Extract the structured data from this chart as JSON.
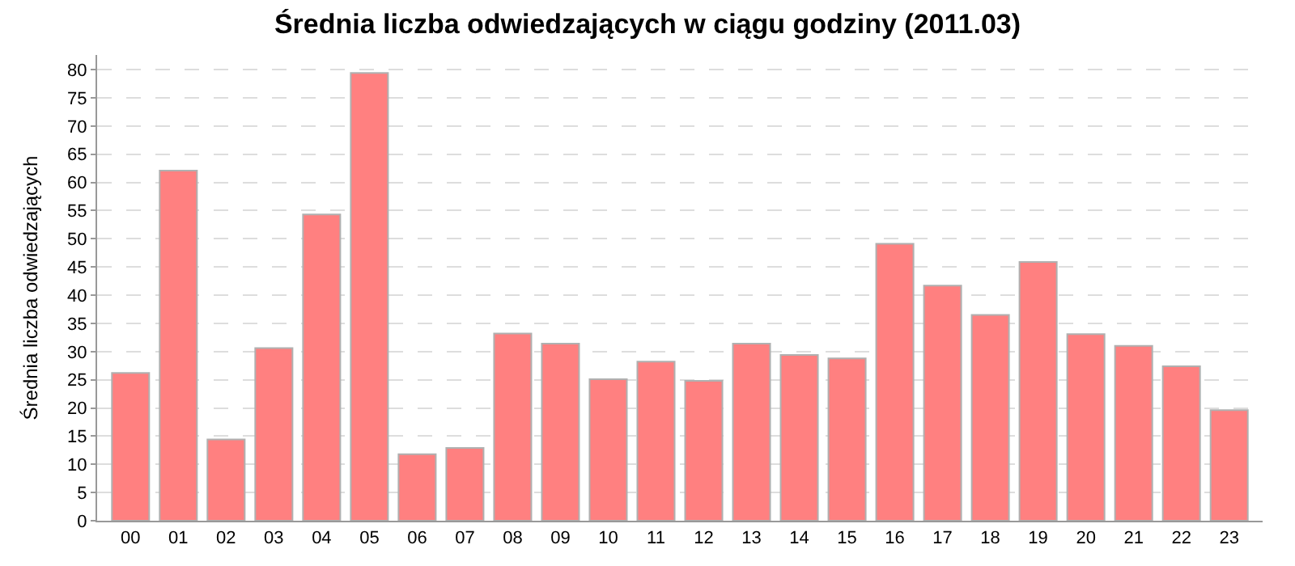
{
  "chart_data": {
    "type": "bar",
    "title": "Średnia liczba odwiedzających w ciągu godziny (2011.03)",
    "ylabel": "Średnia liczba odwiedzających",
    "categories": [
      "00",
      "01",
      "02",
      "03",
      "04",
      "05",
      "06",
      "07",
      "08",
      "09",
      "10",
      "11",
      "12",
      "13",
      "14",
      "15",
      "16",
      "17",
      "18",
      "19",
      "20",
      "21",
      "22",
      "23"
    ],
    "values": [
      26.2,
      62.1,
      14.4,
      30.6,
      54.3,
      79.4,
      11.8,
      12.9,
      33.2,
      31.4,
      25.1,
      28.2,
      24.8,
      31.4,
      29.4,
      28.8,
      49.1,
      41.7,
      36.5,
      45.9,
      33.1,
      31.0,
      27.4,
      19.6
    ],
    "color": "#ff8080",
    "ylim": [
      0,
      82.6
    ],
    "yticks": [
      0,
      5,
      10,
      15,
      20,
      25,
      30,
      35,
      40,
      45,
      50,
      55,
      60,
      65,
      70,
      75,
      80
    ],
    "grid": "y",
    "legend": false
  }
}
